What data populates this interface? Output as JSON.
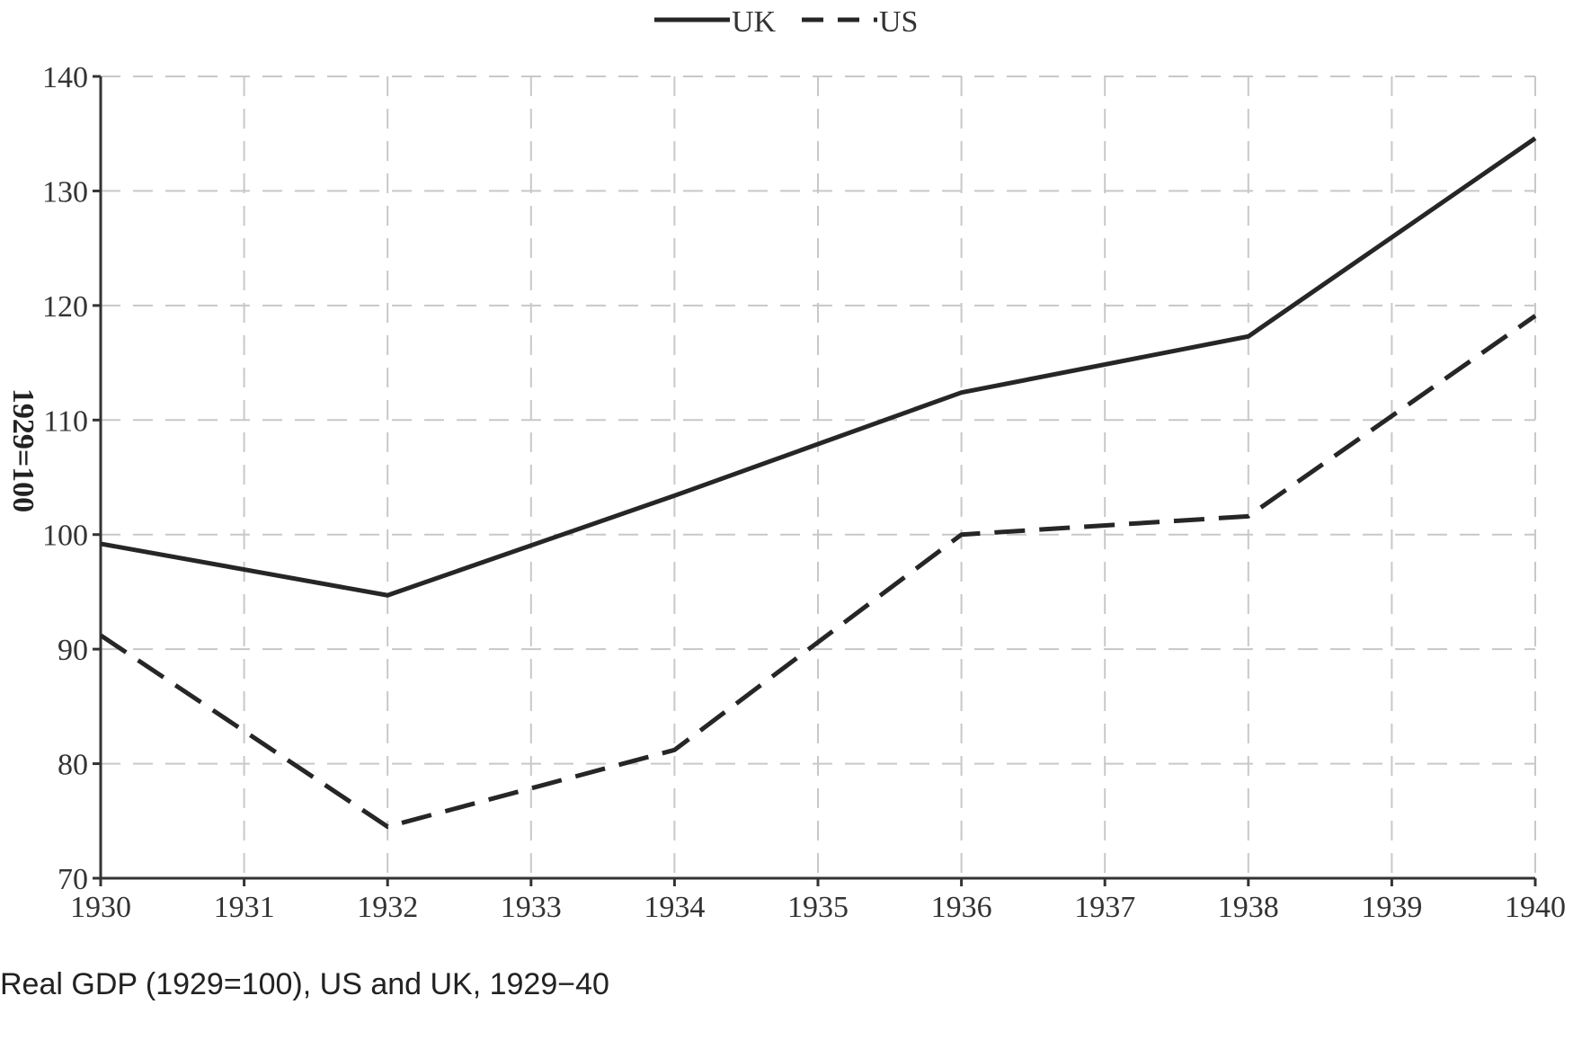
{
  "caption": "Real GDP (1929=100), US and UK, 1929−40",
  "colors": {
    "line": "#262626",
    "grid": "#c8c8c8",
    "axis": "#333333",
    "text": "#333333"
  },
  "chart_data": {
    "type": "line",
    "title": "",
    "xlabel": "",
    "ylabel": "1929=100",
    "x": [
      1930,
      1932,
      1934,
      1936,
      1938,
      1940
    ],
    "xticks": [
      1930,
      1931,
      1932,
      1933,
      1934,
      1935,
      1936,
      1937,
      1938,
      1939,
      1940
    ],
    "yticks": [
      70,
      80,
      90,
      100,
      110,
      120,
      130,
      140
    ],
    "xlim": [
      1930,
      1940
    ],
    "ylim": [
      70,
      140
    ],
    "grid": true,
    "legend": "top-center",
    "series": [
      {
        "name": "UK",
        "style": "solid",
        "values": [
          99.2,
          94.7,
          103.4,
          112.4,
          117.3,
          134.6
        ]
      },
      {
        "name": "US",
        "style": "dashed",
        "values": [
          91.2,
          74.5,
          81.2,
          100.0,
          101.6,
          119.1
        ]
      }
    ]
  }
}
